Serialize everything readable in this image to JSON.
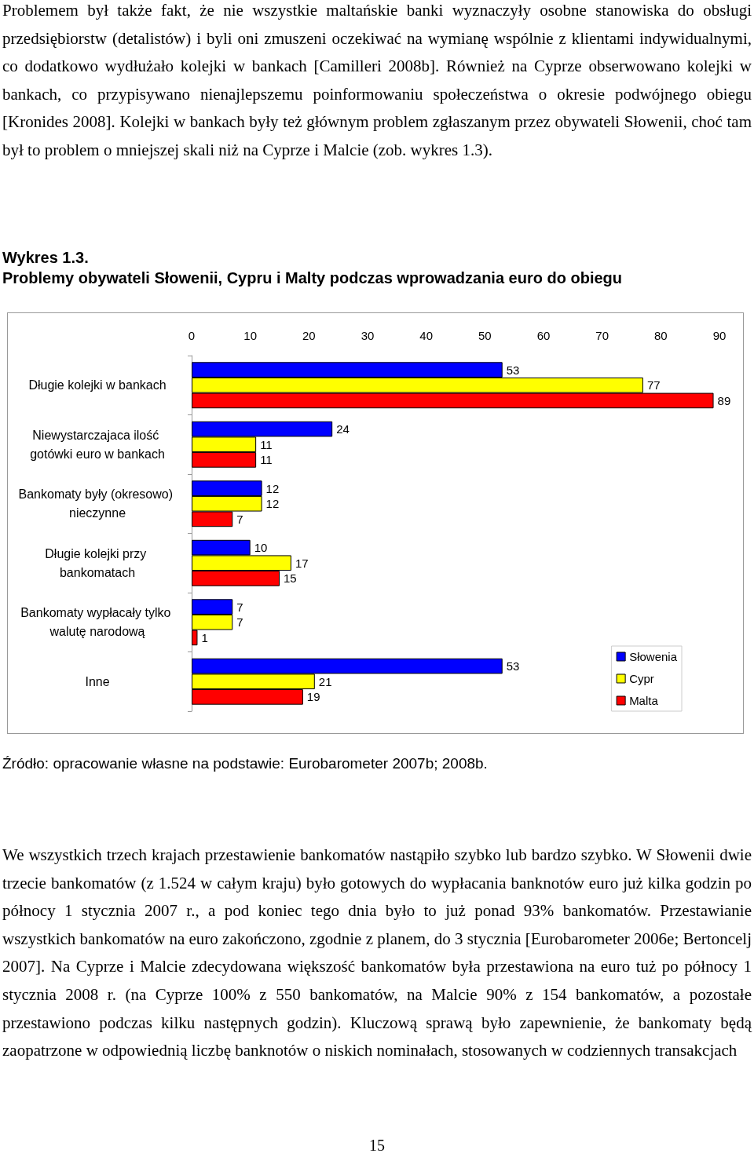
{
  "chart_data": {
    "type": "bar",
    "orientation": "horizontal",
    "title": "Wykres 1.3.",
    "subtitle": "Problemy obywateli Słowenii, Cypru i Malty podczas wprowadzania euro do obiegu",
    "categories": [
      "Długie kolejki w bankach",
      "Niewystarczajaca ilość gotówki euro w bankach",
      "Bankomaty były (okresowo) nieczynne",
      "Długie kolejki przy bankomatach",
      "Bankomaty wypłacały tylko walutę narodową",
      "Inne"
    ],
    "series": [
      {
        "name": "Słowenia",
        "color": "#0000ff",
        "values": [
          53,
          24,
          12,
          10,
          7,
          53
        ]
      },
      {
        "name": "Cypr",
        "color": "#ffff00",
        "values": [
          77,
          11,
          12,
          17,
          7,
          21
        ]
      },
      {
        "name": "Malta",
        "color": "#ff0000",
        "values": [
          89,
          11,
          7,
          15,
          1,
          19
        ]
      }
    ],
    "xlim": [
      0,
      90
    ],
    "xticks": [
      0,
      10,
      20,
      30,
      40,
      50,
      60,
      70,
      80,
      90
    ],
    "data_labels": true,
    "grid": false,
    "legend": "bottom right",
    "annotations": [
      "Problemem był także fakt, że nie wszystkie maltańskie banki wyznaczyły osobne stanowiska do obsługi przedsiębiorstw (detalistów) i byli oni zmuszeni oczekiwać na wymianę wspólnie z klientami indywidualnymi, co dodatkowo wydłużało kolejki w bankach [Camilleri 2008b]. Również na Cyprze obserwowano kolejki w bankach, co przypisywano nienajlepszemu poinformowaniu społeczeństwa o okresie podwójnego obiegu [Kronides 2008]. Kolejki w bankach były też głównym problem zgłaszanym przez obywateli Słowenii, choć tam był to problem o mniejszej skali niż na Cyprze i Malcie (zob. wykres 1.3).",
      "Źródło: opracowanie własne na podstawie: Eurobarometer 2007b; 2008b.",
      "We wszystkich trzech krajach przestawienie bankomatów nastąpiło szybko lub bardzo szybko. W Słowenii dwie trzecie bankomatów (z 1.524 w całym kraju) było gotowych do wypłacania banknotów euro już kilka godzin po północy 1 stycznia 2007 r., a pod koniec tego dnia było to już ponad 93% bankomatów. Przestawianie wszystkich bankomatów na euro zakończono, zgodnie z planem, do 3 stycznia [Eurobarometer 2006e; Bertoncelj 2007]. Na Cyprze i Malcie zdecydowana większość bankomatów była przestawiona na euro tuż po północy 1 stycznia 2008 r. (na Cyprze 100% z 550 bankomatów, na Malcie 90% z 154 bankomatów, a pozostałe przestawiono podczas kilku następnych godzin). Kluczową sprawą było zapewnienie, że bankomaty będą zaopatrzone w odpowiednią liczbę banknotów o niskich nominałach, stosowanych w codziennych transakcjach",
      "15"
    ]
  }
}
